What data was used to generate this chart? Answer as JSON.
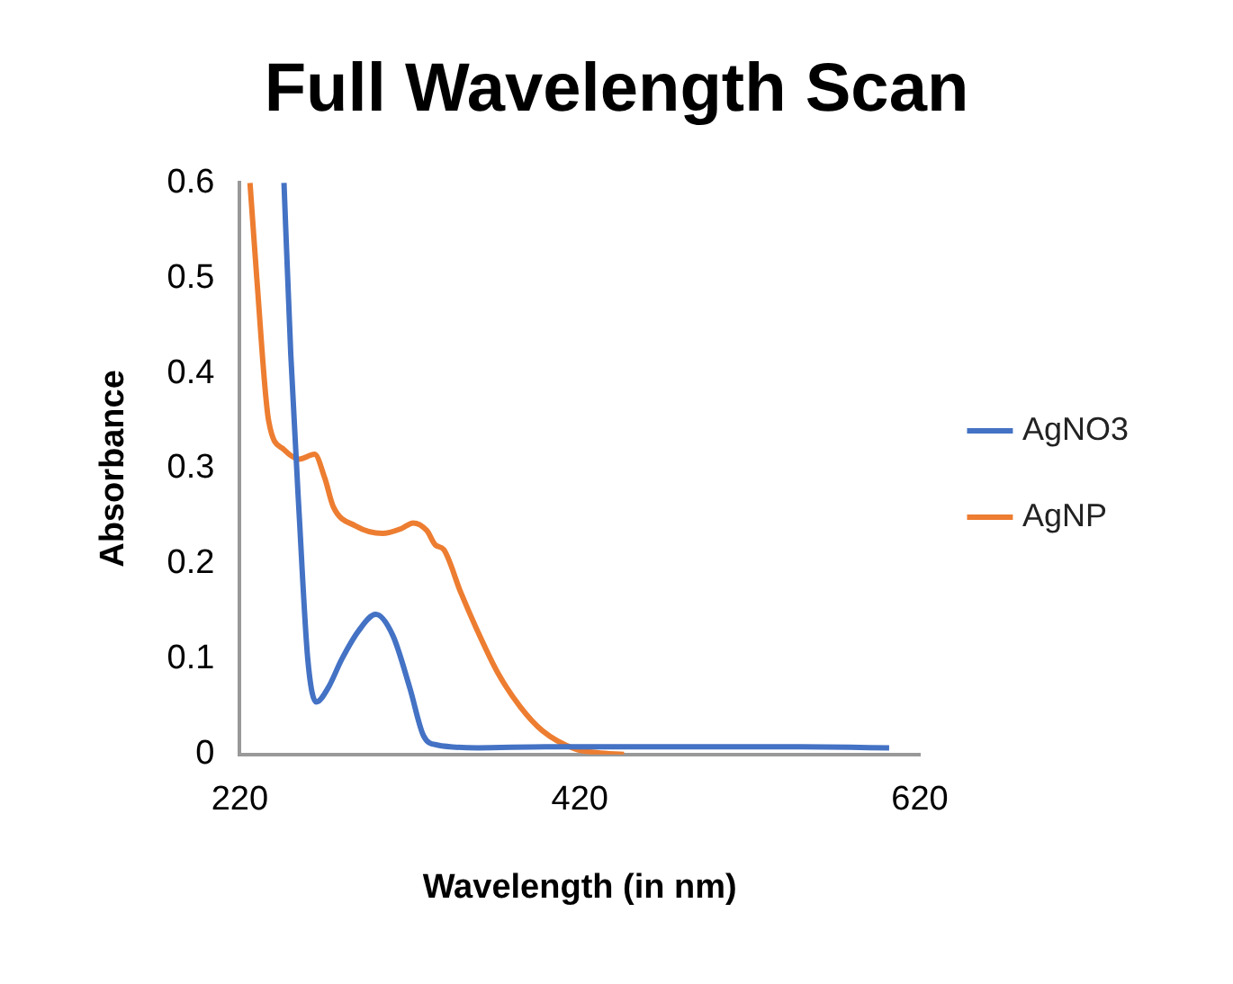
{
  "chart_data": {
    "type": "line",
    "title": "Full Wavelength Scan",
    "xlabel": "Wavelength (in nm)",
    "ylabel": "Absorbance",
    "xlim": [
      220,
      620
    ],
    "xticks": [
      220,
      420,
      620
    ],
    "ylim": [
      0,
      0.6
    ],
    "yticks": [
      0,
      0.1,
      0.2,
      0.3,
      0.4,
      0.5,
      0.6
    ],
    "legend": "right",
    "grid": false,
    "marker": "none",
    "line_style": "solid",
    "series": [
      {
        "name": "AgNO3",
        "color": "#4472c4",
        "x": [
          246,
          250,
          255,
          260,
          265,
          272,
          280,
          290,
          300,
          310,
          320,
          328,
          336,
          360,
          400,
          450,
          500,
          550,
          602
        ],
        "values": [
          0.6,
          0.42,
          0.25,
          0.1,
          0.055,
          0.07,
          0.1,
          0.13,
          0.147,
          0.125,
          0.07,
          0.02,
          0.01,
          0.007,
          0.008,
          0.008,
          0.008,
          0.008,
          0.007
        ]
      },
      {
        "name": "AgNP",
        "color": "#ed7d31",
        "x": [
          226,
          230,
          237,
          246,
          255,
          264,
          270,
          275,
          288,
          304,
          315,
          322,
          330,
          335,
          340,
          350,
          359,
          372,
          385,
          398,
          417,
          430,
          446
        ],
        "values": [
          0.6,
          0.5,
          0.35,
          0.32,
          0.31,
          0.315,
          0.29,
          0.26,
          0.24,
          0.232,
          0.237,
          0.243,
          0.235,
          0.22,
          0.215,
          0.17,
          0.133,
          0.085,
          0.05,
          0.025,
          0.006,
          0.002,
          0
        ]
      }
    ]
  }
}
